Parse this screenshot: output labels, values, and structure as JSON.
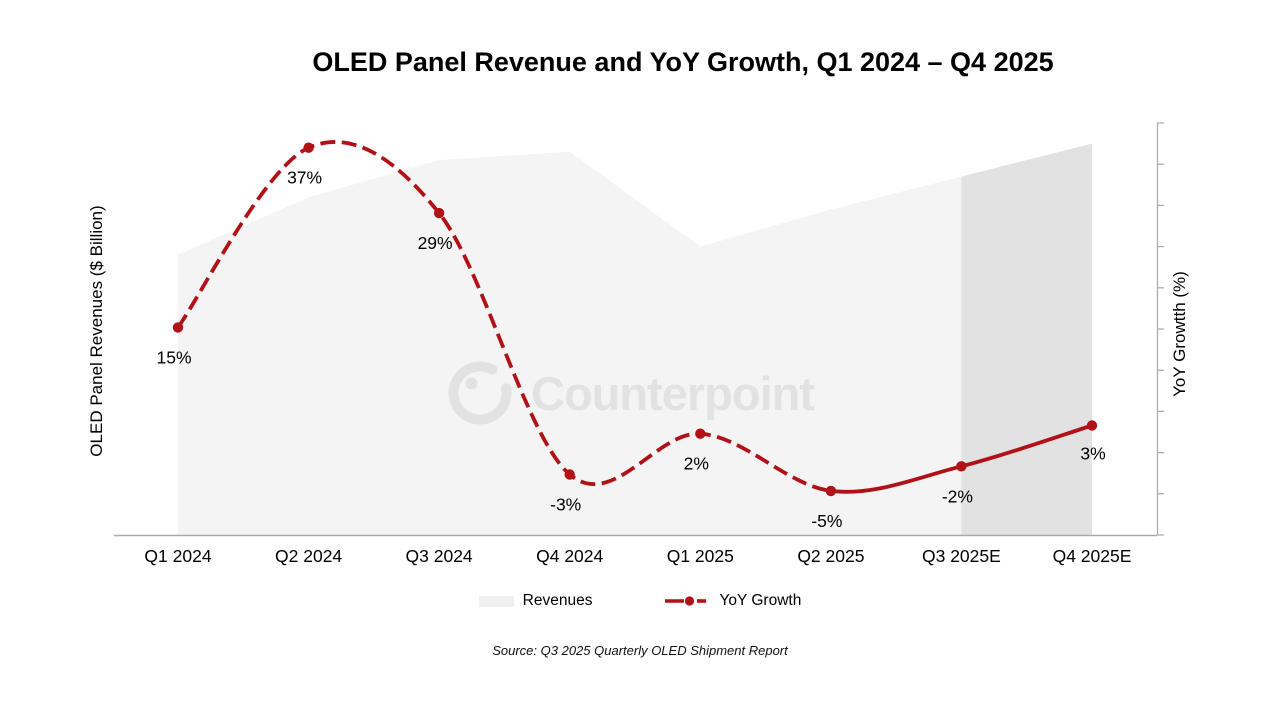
{
  "slide": {
    "title": "OLED Panel Revenue and YoY Growth, Q1 2024 – Q4 2025",
    "source_note": "Source: Q3 2025 Quarterly OLED Shipment Report",
    "watermark_text": "Counterpoint"
  },
  "axes": {
    "y_left_label": "OLED Panel Revenues ($ Billion)",
    "y_right_label": "YoY Growtth (%)",
    "right_axis_tick_count": 11,
    "right_axis_tick_labels_visible": false
  },
  "legend": {
    "revenues_label": "Revenues",
    "yoy_label": "YoY Growth"
  },
  "colors": {
    "line_red": "#b01218",
    "area_gray": "#f4f4f4",
    "area_forecast_gray": "#e2e2e2",
    "axis_gray": "#a9a9a9",
    "watermark_gray": "#e2e2e2",
    "legend_swatch_gray": "#f0f0f0",
    "text_black": "#000000"
  },
  "chart_data": {
    "type": "area+line combo",
    "title": "OLED Panel Revenue and YoY Growth, Q1 2024 – Q4 2025",
    "categories": [
      "Q1 2024",
      "Q2 2024",
      "Q3 2024",
      "Q4 2024",
      "Q1 2025",
      "Q2 2025",
      "Q3 2025E",
      "Q4 2025E"
    ],
    "series": [
      {
        "name": "Revenues",
        "type": "area",
        "axis": "left",
        "axis_label": "OLED Panel Revenues ($ Billion)",
        "unit": "relative height, % of plot (value axis unlabeled)",
        "values": [
          68,
          82,
          91,
          93,
          70,
          79,
          87,
          95
        ],
        "forecast_start_index": 6
      },
      {
        "name": "YoY Growth",
        "type": "line",
        "axis": "right",
        "axis_label": "YoY Growtth (%)",
        "unit": "%",
        "values": [
          15,
          37,
          29,
          -3,
          2,
          -5,
          -2,
          3
        ],
        "point_labels": [
          "15%",
          "37%",
          "29%",
          "-3%",
          "2%",
          "-5%",
          "-2%",
          "3%"
        ],
        "solid_from_index": 5,
        "line_style": "dashed historical, solid from Q2 2025 onward, round markers"
      }
    ],
    "legend_position": "bottom",
    "gridlines": false,
    "notes": "Forecast band (Q3 2025E–Q4 2025E) shaded darker gray; Counterpoint watermark center-left"
  }
}
